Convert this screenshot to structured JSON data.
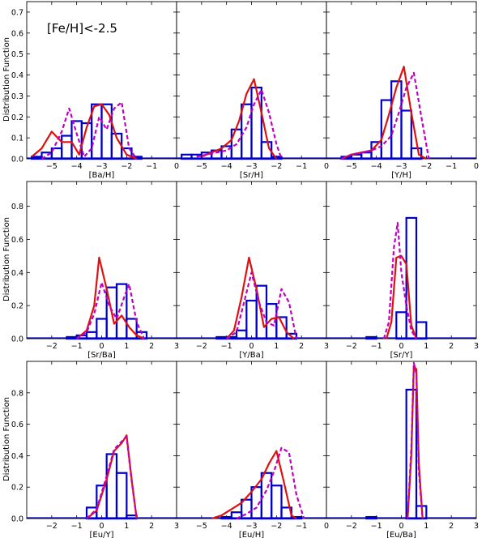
{
  "figure": {
    "annotation": "[Fe/H]<-2.5",
    "ylabel": "Distribution Function"
  },
  "colors": {
    "histogram": "#0000cc",
    "model_solid": "#e01010",
    "model_dashed": "#c000c0"
  },
  "chart_data": [
    {
      "type": "bar",
      "panel": "Ba/H",
      "xlabel": "[Ba/H]",
      "xlim": [
        -6,
        0
      ],
      "ylim": [
        0,
        0.75
      ],
      "xticks": [
        -5,
        -4,
        -3,
        -2,
        -1,
        0
      ],
      "yticks": [
        0.0,
        0.1,
        0.2,
        0.3,
        0.4,
        0.5,
        0.6,
        0.7
      ],
      "bin_width": 0.4,
      "bins_left": [
        -5.8,
        -5.4,
        -5.0,
        -4.6,
        -4.2,
        -3.8,
        -3.4,
        -3.0,
        -2.6,
        -2.2,
        -1.8
      ],
      "values": [
        0.01,
        0.03,
        0.05,
        0.11,
        0.18,
        0.17,
        0.26,
        0.26,
        0.12,
        0.05,
        0.01
      ],
      "series": [
        {
          "name": "model_solid",
          "x": [
            -5.8,
            -5.4,
            -5.0,
            -4.6,
            -4.2,
            -3.9,
            -3.6,
            -3.3,
            -3.0,
            -2.7,
            -2.4,
            -2.0,
            -1.6
          ],
          "y": [
            0.01,
            0.05,
            0.13,
            0.08,
            0.08,
            0.02,
            0.15,
            0.25,
            0.26,
            0.21,
            0.1,
            0.02,
            0.0
          ]
        },
        {
          "name": "model_dashed",
          "x": [
            -5.4,
            -5.0,
            -4.6,
            -4.3,
            -4.0,
            -3.7,
            -3.4,
            -3.1,
            -2.8,
            -2.5,
            -2.2,
            -1.9,
            -1.6
          ],
          "y": [
            0.0,
            0.03,
            0.13,
            0.24,
            0.12,
            0.01,
            0.05,
            0.2,
            0.14,
            0.24,
            0.27,
            0.05,
            0.0
          ]
        }
      ]
    },
    {
      "type": "bar",
      "panel": "Sr/H",
      "xlabel": "[Sr/H]",
      "xlim": [
        -6,
        0
      ],
      "ylim": [
        0,
        0.75
      ],
      "xticks": [
        -5,
        -4,
        -3,
        -2,
        -1,
        0
      ],
      "yticks": [
        0.0,
        0.1,
        0.2,
        0.3,
        0.4,
        0.5,
        0.6,
        0.7
      ],
      "bin_width": 0.4,
      "bins_left": [
        -5.8,
        -5.4,
        -5.0,
        -4.6,
        -4.2,
        -3.8,
        -3.4,
        -3.0,
        -2.6,
        -2.2
      ],
      "values": [
        0.02,
        0.02,
        0.03,
        0.04,
        0.06,
        0.14,
        0.26,
        0.34,
        0.08,
        0.01
      ],
      "series": [
        {
          "name": "model_solid",
          "x": [
            -5.0,
            -4.6,
            -4.2,
            -3.8,
            -3.5,
            -3.2,
            -2.9,
            -2.6,
            -2.3,
            -2.0
          ],
          "y": [
            0.01,
            0.03,
            0.05,
            0.09,
            0.18,
            0.31,
            0.38,
            0.22,
            0.05,
            0.0
          ]
        },
        {
          "name": "model_dashed",
          "x": [
            -5.2,
            -4.8,
            -4.4,
            -4.0,
            -3.6,
            -3.2,
            -2.9,
            -2.6,
            -2.3,
            -2.0,
            -1.8
          ],
          "y": [
            0.01,
            0.02,
            0.03,
            0.04,
            0.07,
            0.15,
            0.26,
            0.33,
            0.22,
            0.07,
            0.0
          ]
        }
      ]
    },
    {
      "type": "bar",
      "panel": "Y/H",
      "xlabel": "[Y/H]",
      "xlim": [
        -6,
        0
      ],
      "ylim": [
        0,
        0.75
      ],
      "xticks": [
        -5,
        -4,
        -3,
        -2,
        -1,
        0
      ],
      "yticks": [
        0.0,
        0.1,
        0.2,
        0.3,
        0.4,
        0.5,
        0.6,
        0.7
      ],
      "bin_width": 0.4,
      "bins_left": [
        -5.4,
        -5.0,
        -4.6,
        -4.2,
        -3.8,
        -3.4,
        -3.0,
        -2.6
      ],
      "values": [
        0.01,
        0.02,
        0.03,
        0.08,
        0.28,
        0.37,
        0.23,
        0.05
      ],
      "series": [
        {
          "name": "model_solid",
          "x": [
            -5.4,
            -5.0,
            -4.6,
            -4.2,
            -3.8,
            -3.5,
            -3.2,
            -2.9,
            -2.6,
            -2.3,
            -2.0
          ],
          "y": [
            0.0,
            0.02,
            0.03,
            0.04,
            0.09,
            0.21,
            0.34,
            0.44,
            0.22,
            0.02,
            0.0
          ]
        },
        {
          "name": "model_dashed",
          "x": [
            -5.4,
            -5.0,
            -4.6,
            -4.2,
            -3.8,
            -3.4,
            -3.1,
            -2.8,
            -2.5,
            -2.2,
            -1.9
          ],
          "y": [
            0.0,
            0.02,
            0.03,
            0.04,
            0.06,
            0.11,
            0.22,
            0.34,
            0.41,
            0.2,
            0.0
          ]
        }
      ]
    },
    {
      "type": "bar",
      "panel": "Sr/Ba",
      "xlabel": "[Sr/Ba]",
      "xlim": [
        -3,
        3
      ],
      "ylim": [
        0,
        0.95
      ],
      "xticks": [
        -2,
        -1,
        0,
        1,
        2,
        3
      ],
      "yticks": [
        0.0,
        0.2,
        0.4,
        0.6,
        0.8
      ],
      "bin_width": 0.4,
      "bins_left": [
        -1.4,
        -1.0,
        -0.6,
        -0.2,
        0.2,
        0.6,
        1.0,
        1.4
      ],
      "values": [
        0.01,
        0.02,
        0.04,
        0.12,
        0.31,
        0.33,
        0.12,
        0.04
      ],
      "series": [
        {
          "name": "model_solid",
          "x": [
            -1.0,
            -0.6,
            -0.3,
            -0.1,
            0.2,
            0.5,
            0.8,
            1.1,
            1.4,
            1.7
          ],
          "y": [
            0.0,
            0.05,
            0.2,
            0.49,
            0.3,
            0.09,
            0.14,
            0.07,
            0.02,
            0.0
          ]
        },
        {
          "name": "model_dashed",
          "x": [
            -1.0,
            -0.6,
            -0.3,
            0.0,
            0.3,
            0.6,
            0.9,
            1.1,
            1.4,
            1.7
          ],
          "y": [
            0.0,
            0.04,
            0.15,
            0.34,
            0.2,
            0.12,
            0.25,
            0.33,
            0.1,
            0.0
          ]
        }
      ]
    },
    {
      "type": "bar",
      "panel": "Y/Ba",
      "xlabel": "[Y/Ba]",
      "xlim": [
        -3,
        3
      ],
      "ylim": [
        0,
        0.95
      ],
      "xticks": [
        -2,
        -1,
        0,
        1,
        2,
        3
      ],
      "yticks": [
        0.0,
        0.2,
        0.4,
        0.6,
        0.8
      ],
      "bin_width": 0.4,
      "bins_left": [
        -1.4,
        -1.0,
        -0.6,
        -0.2,
        0.2,
        0.6,
        1.0,
        1.4
      ],
      "values": [
        0.01,
        0.01,
        0.05,
        0.23,
        0.32,
        0.21,
        0.13,
        0.03
      ],
      "series": [
        {
          "name": "model_solid",
          "x": [
            -1.0,
            -0.7,
            -0.4,
            -0.1,
            0.2,
            0.5,
            0.8,
            1.1,
            1.4,
            1.7
          ],
          "y": [
            0.0,
            0.05,
            0.25,
            0.49,
            0.3,
            0.07,
            0.12,
            0.13,
            0.04,
            0.0
          ]
        },
        {
          "name": "model_dashed",
          "x": [
            -1.0,
            -0.6,
            -0.3,
            0.0,
            0.3,
            0.6,
            0.9,
            1.2,
            1.5,
            1.8
          ],
          "y": [
            0.0,
            0.04,
            0.22,
            0.4,
            0.22,
            0.1,
            0.08,
            0.3,
            0.22,
            0.0
          ]
        }
      ]
    },
    {
      "type": "bar",
      "panel": "Sr/Y",
      "xlabel": "[Sr/Y]",
      "xlim": [
        -3,
        3
      ],
      "ylim": [
        0,
        0.95
      ],
      "xticks": [
        -2,
        -1,
        0,
        1,
        2,
        3
      ],
      "yticks": [
        0.0,
        0.2,
        0.4,
        0.6,
        0.8
      ],
      "bin_width": 0.4,
      "bins_left": [
        -1.4,
        -0.2,
        0.2,
        0.6
      ],
      "values": [
        0.01,
        0.16,
        0.73,
        0.1
      ],
      "series": [
        {
          "name": "model_solid",
          "x": [
            -0.6,
            -0.4,
            -0.2,
            0.0,
            0.2,
            0.4,
            0.6
          ],
          "y": [
            0.0,
            0.1,
            0.49,
            0.5,
            0.45,
            0.08,
            0.0
          ]
        },
        {
          "name": "model_dashed",
          "x": [
            -0.7,
            -0.5,
            -0.3,
            -0.15,
            0.0,
            0.2,
            0.4,
            0.6
          ],
          "y": [
            0.0,
            0.1,
            0.55,
            0.7,
            0.4,
            0.2,
            0.05,
            0.0
          ]
        }
      ]
    },
    {
      "type": "bar",
      "panel": "Eu/Y",
      "xlabel": "[Eu/Y]",
      "xlim": [
        -3,
        3
      ],
      "ylim": [
        0,
        1.0
      ],
      "xticks": [
        -2,
        -1,
        0,
        1,
        2,
        3
      ],
      "yticks": [
        0.0,
        0.2,
        0.4,
        0.6,
        0.8
      ],
      "bin_width": 0.4,
      "bins_left": [
        -0.6,
        -0.2,
        0.2,
        0.6,
        1.0
      ],
      "values": [
        0.07,
        0.21,
        0.41,
        0.29,
        0.02
      ],
      "series": [
        {
          "name": "model_solid",
          "x": [
            -0.6,
            -0.2,
            0.2,
            0.5,
            0.8,
            1.0,
            1.2,
            1.4
          ],
          "y": [
            0.0,
            0.05,
            0.25,
            0.43,
            0.48,
            0.53,
            0.25,
            0.0
          ]
        },
        {
          "name": "model_dashed",
          "x": [
            -0.6,
            -0.2,
            0.2,
            0.5,
            0.8,
            1.0,
            1.2,
            1.4
          ],
          "y": [
            0.0,
            0.06,
            0.27,
            0.44,
            0.49,
            0.52,
            0.24,
            0.0
          ]
        }
      ]
    },
    {
      "type": "bar",
      "panel": "Eu/H",
      "xlabel": "[Eu/H]",
      "xlim": [
        -6,
        0
      ],
      "ylim": [
        0,
        1.0
      ],
      "xticks": [
        -5,
        -4,
        -3,
        -2,
        -1,
        0
      ],
      "yticks": [
        0.0,
        0.2,
        0.4,
        0.6,
        0.8
      ],
      "bin_width": 0.4,
      "bins_left": [
        -4.2,
        -3.8,
        -3.4,
        -3.0,
        -2.6,
        -2.2,
        -1.8,
        -1.4
      ],
      "values": [
        0.01,
        0.04,
        0.12,
        0.2,
        0.29,
        0.21,
        0.07,
        0.01
      ],
      "series": [
        {
          "name": "model_solid",
          "x": [
            -4.6,
            -4.2,
            -3.8,
            -3.4,
            -3.0,
            -2.6,
            -2.3,
            -2.0,
            -1.7,
            -1.4,
            -1.2
          ],
          "y": [
            0.0,
            0.02,
            0.06,
            0.1,
            0.17,
            0.25,
            0.35,
            0.43,
            0.23,
            0.02,
            0.0
          ]
        },
        {
          "name": "model_dashed",
          "x": [
            -3.6,
            -3.2,
            -2.8,
            -2.4,
            -2.1,
            -1.8,
            -1.5,
            -1.2,
            -0.9
          ],
          "y": [
            0.0,
            0.03,
            0.07,
            0.18,
            0.3,
            0.45,
            0.42,
            0.15,
            0.0
          ]
        }
      ]
    },
    {
      "type": "bar",
      "panel": "Eu/Ba",
      "xlabel": "[Eu/Ba]",
      "xlim": [
        -3,
        3
      ],
      "ylim": [
        0,
        1.0
      ],
      "xticks": [
        -2,
        -1,
        0,
        1,
        2,
        3
      ],
      "yticks": [
        0.0,
        0.2,
        0.4,
        0.6,
        0.8
      ],
      "bin_width": 0.4,
      "bins_left": [
        -1.4,
        0.2,
        0.6
      ],
      "values": [
        0.01,
        0.82,
        0.08
      ],
      "series": [
        {
          "name": "model_solid",
          "x": [
            0.25,
            0.4,
            0.5,
            0.6,
            0.7,
            0.85
          ],
          "y": [
            0.0,
            0.4,
            0.97,
            0.95,
            0.35,
            0.0
          ]
        },
        {
          "name": "model_dashed",
          "x": [
            0.25,
            0.4,
            0.5,
            0.6,
            0.7,
            0.85
          ],
          "y": [
            0.0,
            0.45,
            0.99,
            0.92,
            0.3,
            0.0
          ]
        }
      ]
    }
  ]
}
